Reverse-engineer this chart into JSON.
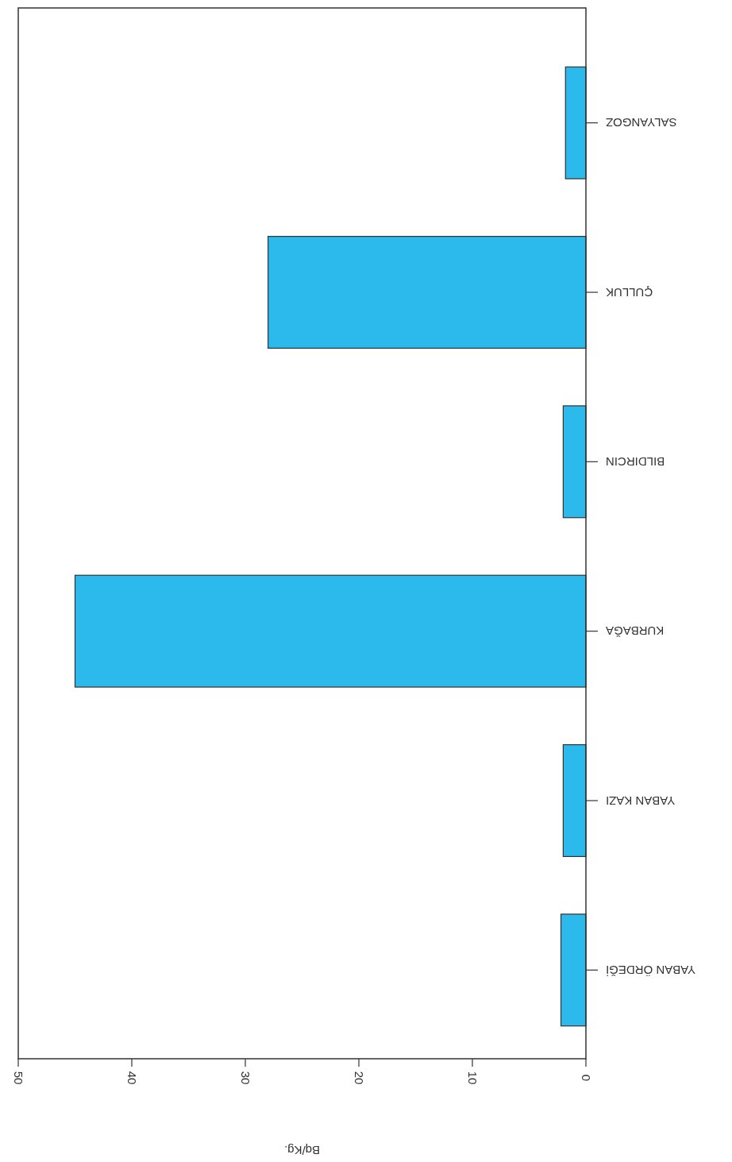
{
  "chart_data": {
    "type": "bar",
    "orientation": "horizontal",
    "xlabel": "Bq/Kg.",
    "categories": [
      "SALYANGOZ",
      "ÇULLUK",
      "BILDIRCIN",
      "KURBAĞA",
      "YABAN KAZI",
      "YABAN ÖRDEĞİ"
    ],
    "values": [
      1.8,
      28,
      2,
      45,
      2,
      2.2
    ],
    "color": "#2cb9ec",
    "xlim": [
      50,
      0
    ],
    "xticks": [
      0,
      10,
      20,
      30,
      40,
      50
    ],
    "grid": false
  }
}
